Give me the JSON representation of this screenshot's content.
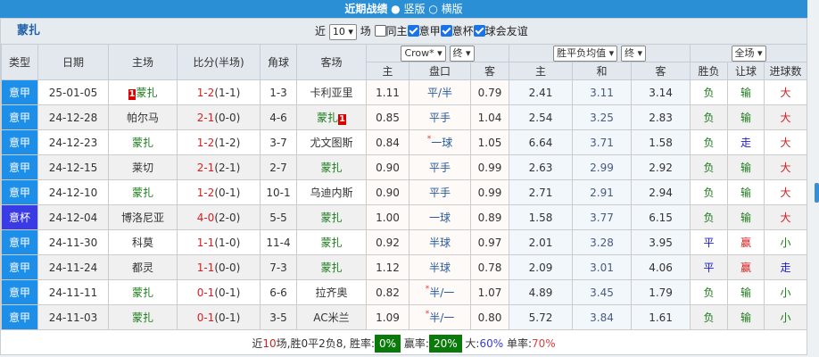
{
  "topbar": {
    "title": "近期战绩",
    "opt1": "竖版",
    "opt2": "横版"
  },
  "team": "蒙扎",
  "controls": {
    "near": "近",
    "count": "10",
    "unit": "场",
    "same_home": "同主",
    "f1": "意甲",
    "f2": "意杯",
    "f3": "球会友谊"
  },
  "headers": {
    "type": "类型",
    "date": "日期",
    "home": "主场",
    "score": "比分(半场)",
    "corner": "角球",
    "away": "客场",
    "company": "Crow*",
    "final1": "终",
    "avg": "胜平负均值",
    "final2": "终",
    "scope": "全场",
    "h_home": "主",
    "h_line": "盘口",
    "h_away": "客",
    "e_home": "主",
    "e_draw": "和",
    "e_away": "客",
    "res": "胜负",
    "hcap": "让球",
    "goals": "进球数"
  },
  "rows": [
    {
      "type": "意甲",
      "date": "25-01-05",
      "home": "蒙扎",
      "home_tag": "1",
      "score": "1-2",
      "half": "(1-1)",
      "corner": "1-3",
      "away": "卡利亚里",
      "away_tag": "",
      "oh": "1.11",
      "line": "平/半",
      "star": false,
      "oa": "0.79",
      "eh": "2.41",
      "ed": "3.11",
      "ea": "3.14",
      "res": "负",
      "hc": "输",
      "gl": "大"
    },
    {
      "type": "意甲",
      "date": "24-12-28",
      "home": "帕尔马",
      "home_tag": "",
      "score": "2-1",
      "half": "(0-0)",
      "corner": "4-6",
      "away": "蒙扎",
      "away_tag": "1",
      "oh": "0.85",
      "line": "平手",
      "star": false,
      "oa": "1.04",
      "eh": "2.54",
      "ed": "3.25",
      "ea": "2.83",
      "res": "负",
      "hc": "输",
      "gl": "大"
    },
    {
      "type": "意甲",
      "date": "24-12-23",
      "home": "蒙扎",
      "home_tag": "",
      "score": "1-2",
      "half": "(1-2)",
      "corner": "3-7",
      "away": "尤文图斯",
      "away_tag": "",
      "oh": "0.84",
      "line": "一球",
      "star": true,
      "oa": "1.05",
      "eh": "6.64",
      "ed": "3.71",
      "ea": "1.58",
      "res": "负",
      "hc": "走",
      "gl": "大"
    },
    {
      "type": "意甲",
      "date": "24-12-15",
      "home": "莱切",
      "home_tag": "",
      "score": "2-1",
      "half": "(2-1)",
      "corner": "2-7",
      "away": "蒙扎",
      "away_tag": "",
      "oh": "0.90",
      "line": "平手",
      "star": false,
      "oa": "0.99",
      "eh": "2.63",
      "ed": "2.99",
      "ea": "2.92",
      "res": "负",
      "hc": "输",
      "gl": "大"
    },
    {
      "type": "意甲",
      "date": "24-12-10",
      "home": "蒙扎",
      "home_tag": "",
      "score": "1-2",
      "half": "(0-1)",
      "corner": "10-1",
      "away": "乌迪内斯",
      "away_tag": "",
      "oh": "0.90",
      "line": "平手",
      "star": false,
      "oa": "0.99",
      "eh": "2.71",
      "ed": "2.91",
      "ea": "2.94",
      "res": "负",
      "hc": "输",
      "gl": "大"
    },
    {
      "type": "意杯",
      "date": "24-12-04",
      "home": "博洛尼亚",
      "home_tag": "",
      "score": "4-0",
      "half": "(2-0)",
      "corner": "5-5",
      "away": "蒙扎",
      "away_tag": "",
      "oh": "1.00",
      "line": "一球",
      "star": false,
      "oa": "0.89",
      "eh": "1.58",
      "ed": "3.77",
      "ea": "6.15",
      "res": "负",
      "hc": "输",
      "gl": "大"
    },
    {
      "type": "意甲",
      "date": "24-11-30",
      "home": "科莫",
      "home_tag": "",
      "score": "1-1",
      "half": "(1-0)",
      "corner": "11-4",
      "away": "蒙扎",
      "away_tag": "",
      "oh": "0.92",
      "line": "半球",
      "star": false,
      "oa": "0.97",
      "eh": "2.01",
      "ed": "3.28",
      "ea": "3.95",
      "res": "平",
      "hc": "赢",
      "gl": "小"
    },
    {
      "type": "意甲",
      "date": "24-11-24",
      "home": "都灵",
      "home_tag": "",
      "score": "1-1",
      "half": "(0-0)",
      "corner": "7-3",
      "away": "蒙扎",
      "away_tag": "",
      "oh": "1.12",
      "line": "半球",
      "star": false,
      "oa": "0.78",
      "eh": "2.09",
      "ed": "3.01",
      "ea": "4.06",
      "res": "平",
      "hc": "赢",
      "gl": "走"
    },
    {
      "type": "意甲",
      "date": "24-11-11",
      "home": "蒙扎",
      "home_tag": "",
      "score": "0-1",
      "half": "(0-1)",
      "corner": "6-6",
      "away": "拉齐奥",
      "away_tag": "",
      "oh": "0.82",
      "line": "半/一",
      "star": true,
      "oa": "1.07",
      "eh": "4.89",
      "ed": "3.45",
      "ea": "1.79",
      "res": "负",
      "hc": "输",
      "gl": "小"
    },
    {
      "type": "意甲",
      "date": "24-11-03",
      "home": "蒙扎",
      "home_tag": "",
      "score": "0-1",
      "half": "(0-1)",
      "corner": "3-5",
      "away": "AC米兰",
      "away_tag": "",
      "oh": "1.09",
      "line": "半/一",
      "star": true,
      "oa": "0.80",
      "eh": "5.72",
      "ed": "3.84",
      "ea": "1.61",
      "res": "负",
      "hc": "输",
      "gl": "小"
    }
  ],
  "footer": {
    "p1": "近",
    "n": "10",
    "p2": "场,胜0平2负8, 胜率:",
    "win_rate": "0%",
    "p3": " 赢率:",
    "cover_rate": "20%",
    "p4": " 大:",
    "big": "60%",
    "p5": " 单率:",
    "odd": "70%"
  },
  "star_mark": "*",
  "colors": {
    "topbar": "#2a8fd4",
    "league": "#1e8fe8",
    "cup": "#3b3be6",
    "rate_badge": "#0a7a0a"
  }
}
